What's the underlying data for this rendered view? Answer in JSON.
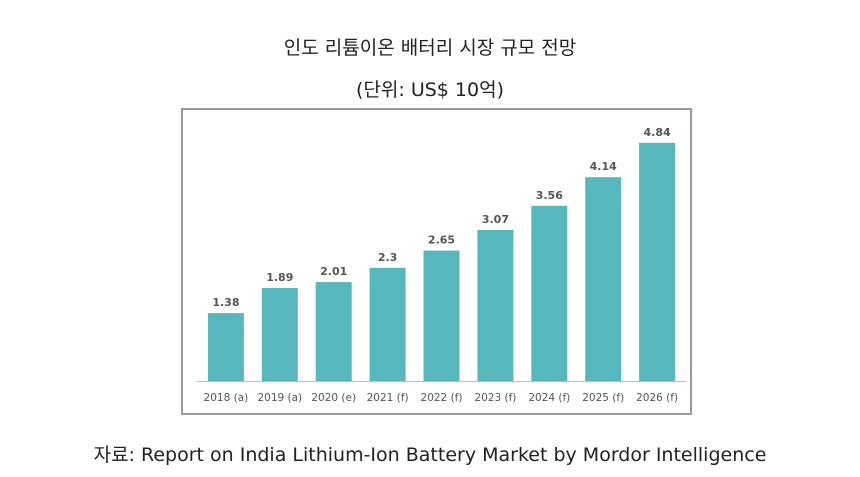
{
  "title": "인도 리튬이온 배터리 시장 규모 전망",
  "subtitle": "(단위: US$ 10억)",
  "source": "자료: Report on India Lithium-Ion Battery Market by Mordor Intelligence",
  "colors": {
    "bar": "#56B8BC",
    "label": "#555555",
    "axis": "#bfbfbf"
  },
  "chart_data": {
    "type": "bar",
    "categories": [
      "2018 (a)",
      "2019 (a)",
      "2020 (e)",
      "2021 (f)",
      "2022 (f)",
      "2023 (f)",
      "2024 (f)",
      "2025 (f)",
      "2026 (f)"
    ],
    "values": [
      1.38,
      1.89,
      2.01,
      2.3,
      2.65,
      3.07,
      3.56,
      4.14,
      4.84
    ],
    "value_labels": [
      "1.38",
      "1.89",
      "2.01",
      "2.3",
      "2.65",
      "3.07",
      "3.56",
      "4.14",
      "4.84"
    ],
    "title": "인도 리튬이온 배터리 시장 규모 전망",
    "subtitle": "(단위: US$ 10억)",
    "xlabel": "",
    "ylabel": "",
    "ylim": [
      0,
      5.1
    ],
    "grid": false,
    "legend": "none"
  }
}
